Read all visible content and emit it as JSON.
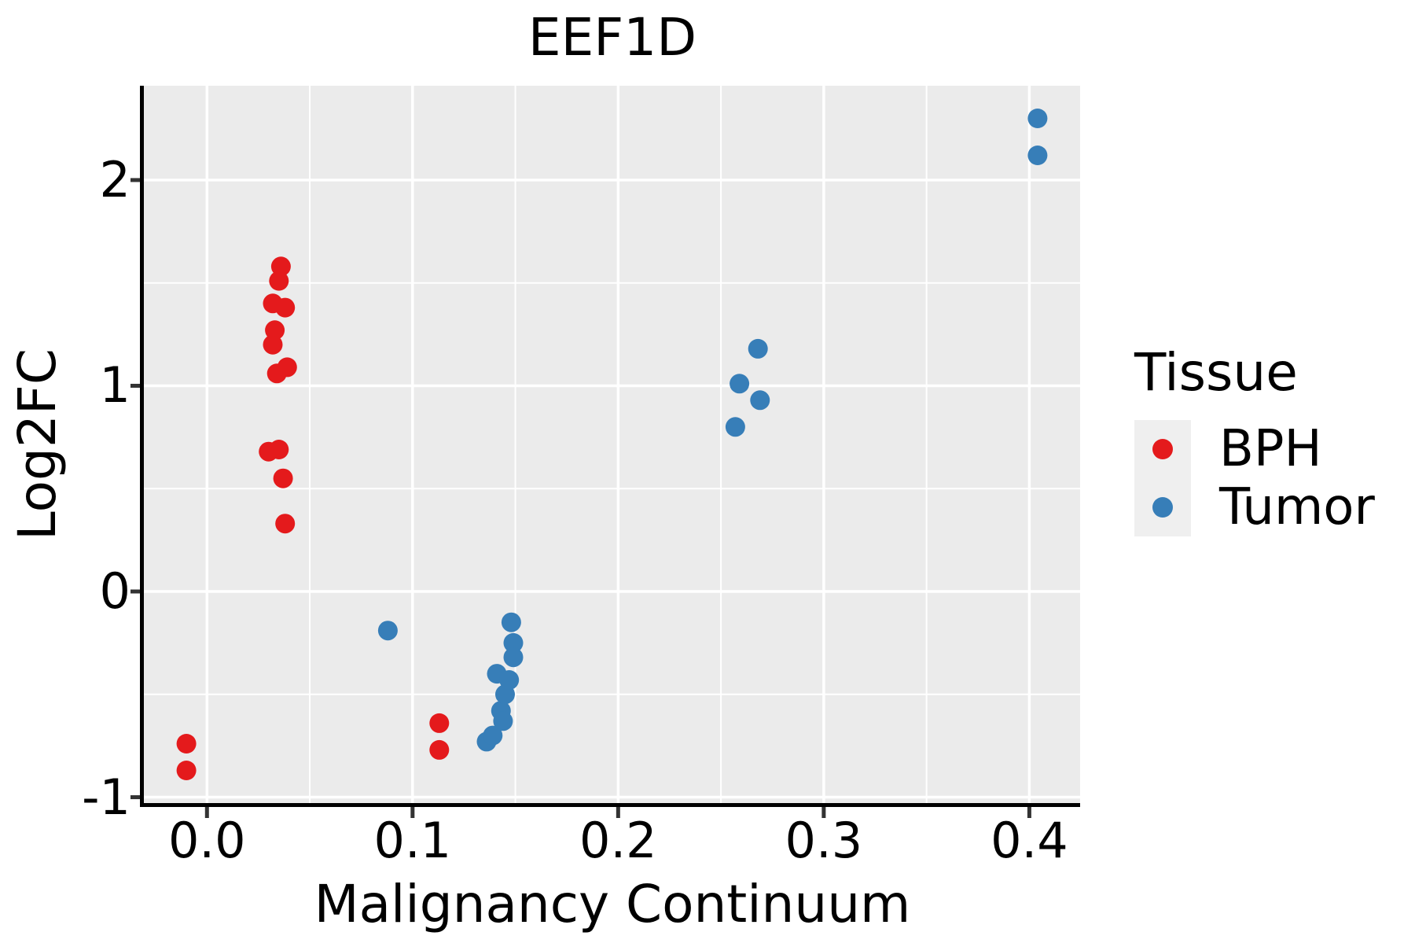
{
  "title": "EEF1D",
  "chart_data": {
    "type": "scatter",
    "title": "EEF1D",
    "xlabel": "Malignancy Continuum",
    "ylabel": "Log2FC",
    "xlim": [
      -0.0307,
      0.4247
    ],
    "ylim": [
      -1.0285,
      2.4585
    ],
    "x_ticks": [
      0.0,
      0.1,
      0.2,
      0.3,
      0.4
    ],
    "x_tick_labels": [
      "0.0",
      "0.1",
      "0.2",
      "0.3",
      "0.4"
    ],
    "y_ticks": [
      -1,
      0,
      1,
      2
    ],
    "y_tick_labels": [
      "-1",
      "0",
      "1",
      "2"
    ],
    "x_minor_gridlines": [
      0.05,
      0.15,
      0.25,
      0.35
    ],
    "y_minor_gridlines": [
      -0.5,
      0.5,
      1.5
    ],
    "grid": true,
    "panel_background": "#ebebeb",
    "grid_color": "#ffffff",
    "spine_color": "#000000",
    "tick_color": "#333333",
    "marker_radius_px": 12.5,
    "legend_title": "Tissue",
    "legend_position": "right",
    "series": [
      {
        "name": "BPH",
        "color": "#e41a1c",
        "points": [
          [
            -0.01,
            -0.74
          ],
          [
            -0.01,
            -0.87
          ],
          [
            0.03,
            0.68
          ],
          [
            0.032,
            1.4
          ],
          [
            0.032,
            1.2
          ],
          [
            0.033,
            1.27
          ],
          [
            0.034,
            1.06
          ],
          [
            0.035,
            1.51
          ],
          [
            0.035,
            0.69
          ],
          [
            0.036,
            1.58
          ],
          [
            0.037,
            0.55
          ],
          [
            0.038,
            1.38
          ],
          [
            0.038,
            0.33
          ],
          [
            0.039,
            1.09
          ],
          [
            0.113,
            -0.64
          ],
          [
            0.113,
            -0.77
          ]
        ]
      },
      {
        "name": "Tumor",
        "color": "#377eb8",
        "points": [
          [
            0.088,
            -0.19
          ],
          [
            0.136,
            -0.73
          ],
          [
            0.139,
            -0.7
          ],
          [
            0.141,
            -0.4
          ],
          [
            0.143,
            -0.58
          ],
          [
            0.144,
            -0.63
          ],
          [
            0.145,
            -0.5
          ],
          [
            0.147,
            -0.43
          ],
          [
            0.148,
            -0.15
          ],
          [
            0.149,
            -0.25
          ],
          [
            0.149,
            -0.32
          ],
          [
            0.257,
            0.8
          ],
          [
            0.259,
            1.01
          ],
          [
            0.268,
            1.18
          ],
          [
            0.269,
            0.93
          ],
          [
            0.404,
            2.3
          ],
          [
            0.404,
            2.12
          ]
        ]
      }
    ]
  }
}
